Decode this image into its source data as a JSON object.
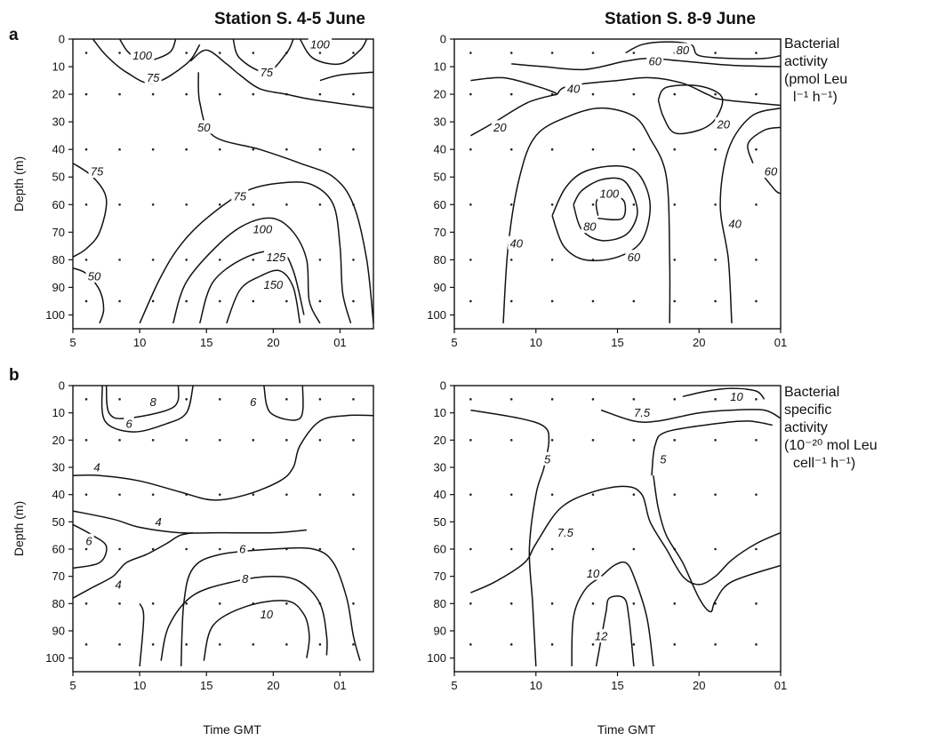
{
  "figure": {
    "letters": [
      "a",
      "b"
    ],
    "column_titles": [
      "Station S. 4-5 June",
      "Station S. 8-9 June"
    ],
    "side_labels": [
      [
        "Bacterial",
        "activity",
        "(pmol Leu",
        "l⁻¹ h⁻¹)"
      ],
      [
        "Bacterial",
        "specific",
        "activity",
        "(10⁻²⁰ mol Leu",
        "cell⁻¹ h⁻¹)"
      ]
    ]
  },
  "chart_data": [
    {
      "type": "contour",
      "panel": "a-left",
      "title": "Station S. 4-5 June",
      "ylabel": "Depth (m)",
      "xlabel": "",
      "x_ticks": [
        "5",
        "10",
        "15",
        "20",
        "01"
      ],
      "y_ticks": [
        "0",
        "10",
        "20",
        "30",
        "40",
        "50",
        "60",
        "70",
        "80",
        "90",
        "100"
      ],
      "ylim": [
        0,
        105
      ],
      "contour_labels": [
        {
          "text": "100",
          "x": 10.2,
          "y": 6
        },
        {
          "text": "75",
          "x": 11.0,
          "y": 14
        },
        {
          "text": "100",
          "x": 23.5,
          "y": 2
        },
        {
          "text": "75",
          "x": 19.5,
          "y": 12
        },
        {
          "text": "50",
          "x": 14.8,
          "y": 32
        },
        {
          "text": "75",
          "x": 6.8,
          "y": 48
        },
        {
          "text": "75",
          "x": 17.5,
          "y": 57
        },
        {
          "text": "100",
          "x": 19.2,
          "y": 69
        },
        {
          "text": "125",
          "x": 20.2,
          "y": 79
        },
        {
          "text": "150",
          "x": 20.0,
          "y": 89
        },
        {
          "text": "50",
          "x": 6.6,
          "y": 86
        }
      ]
    },
    {
      "type": "contour",
      "panel": "a-right",
      "title": "Station S. 8-9 June",
      "ylabel": "",
      "xlabel": "",
      "x_ticks": [
        "5",
        "10",
        "15",
        "20",
        "01"
      ],
      "y_ticks": [
        "0",
        "10",
        "20",
        "30",
        "40",
        "50",
        "60",
        "70",
        "80",
        "90",
        "100"
      ],
      "ylim": [
        0,
        105
      ],
      "contour_labels": [
        {
          "text": "80",
          "x": 19.0,
          "y": 4
        },
        {
          "text": "60",
          "x": 17.3,
          "y": 8
        },
        {
          "text": "40",
          "x": 12.3,
          "y": 18
        },
        {
          "text": "20",
          "x": 7.8,
          "y": 32
        },
        {
          "text": "20",
          "x": 21.5,
          "y": 31
        },
        {
          "text": "100",
          "x": 14.5,
          "y": 56
        },
        {
          "text": "80",
          "x": 13.3,
          "y": 68
        },
        {
          "text": "60",
          "x": 16.0,
          "y": 79
        },
        {
          "text": "40",
          "x": 8.8,
          "y": 74
        },
        {
          "text": "60",
          "x": 24.4,
          "y": 48
        },
        {
          "text": "40",
          "x": 22.2,
          "y": 67
        }
      ]
    },
    {
      "type": "contour",
      "panel": "b-left",
      "title": "",
      "ylabel": "Depth (m)",
      "xlabel": "Time GMT",
      "x_ticks": [
        "5",
        "10",
        "15",
        "20",
        "01"
      ],
      "y_ticks": [
        "0",
        "10",
        "20",
        "30",
        "40",
        "50",
        "60",
        "70",
        "80",
        "90",
        "100"
      ],
      "ylim": [
        0,
        105
      ],
      "contour_labels": [
        {
          "text": "8",
          "x": 11.0,
          "y": 6
        },
        {
          "text": "6",
          "x": 18.5,
          "y": 6
        },
        {
          "text": "6",
          "x": 9.2,
          "y": 14
        },
        {
          "text": "4",
          "x": 6.8,
          "y": 30
        },
        {
          "text": "4",
          "x": 11.4,
          "y": 50
        },
        {
          "text": "6",
          "x": 6.2,
          "y": 57
        },
        {
          "text": "6",
          "x": 17.7,
          "y": 60
        },
        {
          "text": "4",
          "x": 8.4,
          "y": 73
        },
        {
          "text": "8",
          "x": 17.9,
          "y": 71
        },
        {
          "text": "10",
          "x": 19.5,
          "y": 84
        }
      ]
    },
    {
      "type": "contour",
      "panel": "b-right",
      "title": "",
      "ylabel": "",
      "xlabel": "Time GMT",
      "x_ticks": [
        "5",
        "10",
        "15",
        "20",
        "01"
      ],
      "y_ticks": [
        "0",
        "10",
        "20",
        "30",
        "40",
        "50",
        "60",
        "70",
        "80",
        "90",
        "100"
      ],
      "ylim": [
        0,
        105
      ],
      "contour_labels": [
        {
          "text": "10",
          "x": 22.3,
          "y": 4
        },
        {
          "text": "7.5",
          "x": 16.5,
          "y": 10
        },
        {
          "text": "5",
          "x": 10.7,
          "y": 27
        },
        {
          "text": "5",
          "x": 17.8,
          "y": 27
        },
        {
          "text": "7.5",
          "x": 11.8,
          "y": 54
        },
        {
          "text": "10",
          "x": 13.5,
          "y": 69
        },
        {
          "text": "12",
          "x": 14.0,
          "y": 92
        }
      ]
    }
  ]
}
